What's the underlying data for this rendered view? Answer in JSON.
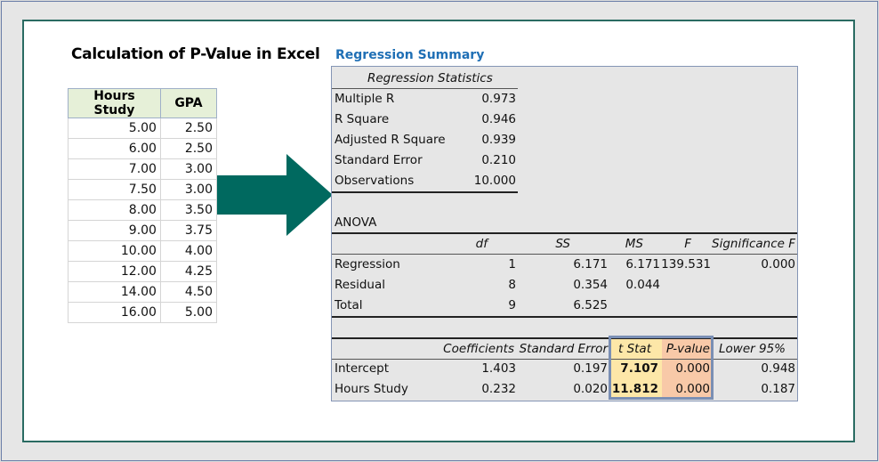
{
  "page_title": "Calculation of P-Value in Excel",
  "regression_title": "Regression Summary",
  "data_table": {
    "headers": [
      "Hours Study",
      "GPA"
    ],
    "rows": [
      [
        "5.00",
        "2.50"
      ],
      [
        "6.00",
        "2.50"
      ],
      [
        "7.00",
        "3.00"
      ],
      [
        "7.50",
        "3.00"
      ],
      [
        "8.00",
        "3.50"
      ],
      [
        "9.00",
        "3.75"
      ],
      [
        "10.00",
        "4.00"
      ],
      [
        "12.00",
        "4.25"
      ],
      [
        "14.00",
        "4.50"
      ],
      [
        "16.00",
        "5.00"
      ]
    ]
  },
  "regression_statistics": {
    "header": "Regression Statistics",
    "rows": [
      {
        "label": "Multiple R",
        "value": "0.973"
      },
      {
        "label": "R Square",
        "value": "0.946"
      },
      {
        "label": "Adjusted R Square",
        "value": "0.939"
      },
      {
        "label": "Standard Error",
        "value": "0.210"
      },
      {
        "label": "Observations",
        "value": "10.000"
      }
    ]
  },
  "anova": {
    "title": "ANOVA",
    "headers": [
      "df",
      "SS",
      "MS",
      "F",
      "Significance F"
    ],
    "rows": [
      {
        "label": "Regression",
        "df": "1",
        "ss": "6.171",
        "ms": "6.171",
        "f": "139.531",
        "sig": "0.000"
      },
      {
        "label": "Residual",
        "df": "8",
        "ss": "0.354",
        "ms": "0.044",
        "f": "",
        "sig": ""
      },
      {
        "label": "Total",
        "df": "9",
        "ss": "6.525",
        "ms": "",
        "f": "",
        "sig": ""
      }
    ]
  },
  "coefficients": {
    "headers": [
      "Coefficients",
      "Standard Error",
      "t Stat",
      "P-value",
      "Lower 95%"
    ],
    "rows": [
      {
        "label": "Intercept",
        "coef": "1.403",
        "se": "0.197",
        "t": "7.107",
        "p": "0.000",
        "lower": "0.948"
      },
      {
        "label": "Hours Study",
        "coef": "0.232",
        "se": "0.020",
        "t": "11.812",
        "p": "0.000",
        "lower": "0.187"
      }
    ]
  },
  "colors": {
    "frame": "#2a6b62",
    "arrow": "#00695f",
    "title_blue": "#1f6fb5",
    "tstat_fill": "#fde7a8",
    "pvalue_fill": "#f8c9a8",
    "header_fill": "#e6f0d8"
  }
}
